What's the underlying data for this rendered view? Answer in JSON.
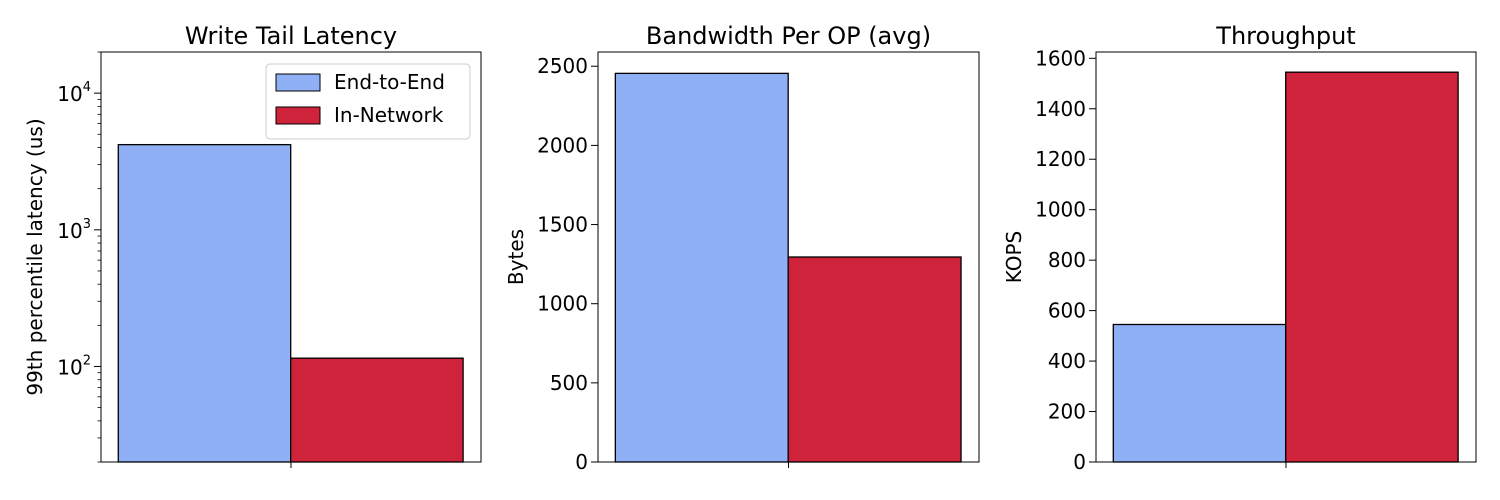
{
  "chart_data": [
    {
      "type": "bar",
      "title": "Write Tail Latency",
      "ylabel": "99th percentile latency (us)",
      "yscale": "log",
      "ylim": [
        20,
        20000
      ],
      "yticks": [
        {
          "value": 100,
          "base": "10",
          "exp": "2"
        },
        {
          "value": 1000,
          "base": "10",
          "exp": "3"
        },
        {
          "value": 10000,
          "base": "10",
          "exp": "4"
        }
      ],
      "series": [
        {
          "name": "End-to-End",
          "values": [
            4200
          ]
        },
        {
          "name": "In-Network",
          "values": [
            115
          ]
        }
      ],
      "legend": "top-right"
    },
    {
      "type": "bar",
      "title": "Bandwidth Per OP (avg)",
      "ylabel": "Bytes",
      "yscale": "linear",
      "ylim": [
        0,
        2590
      ],
      "yticks": [
        0,
        500,
        1000,
        1500,
        2000,
        2500
      ],
      "series": [
        {
          "values": [
            2455
          ]
        },
        {
          "values": [
            1295
          ]
        }
      ]
    },
    {
      "type": "bar",
      "title": "Throughput",
      "ylabel": "KOPS",
      "yscale": "linear",
      "ylim": [
        0,
        1625
      ],
      "yticks": [
        0,
        200,
        400,
        600,
        800,
        1000,
        1200,
        1400,
        1600
      ],
      "series": [
        {
          "values": [
            545
          ]
        },
        {
          "values": [
            1545
          ]
        }
      ]
    }
  ],
  "colors": {
    "end_to_end": "#8fb0f5",
    "in_network": "#cf223b",
    "edge": "#000000"
  }
}
